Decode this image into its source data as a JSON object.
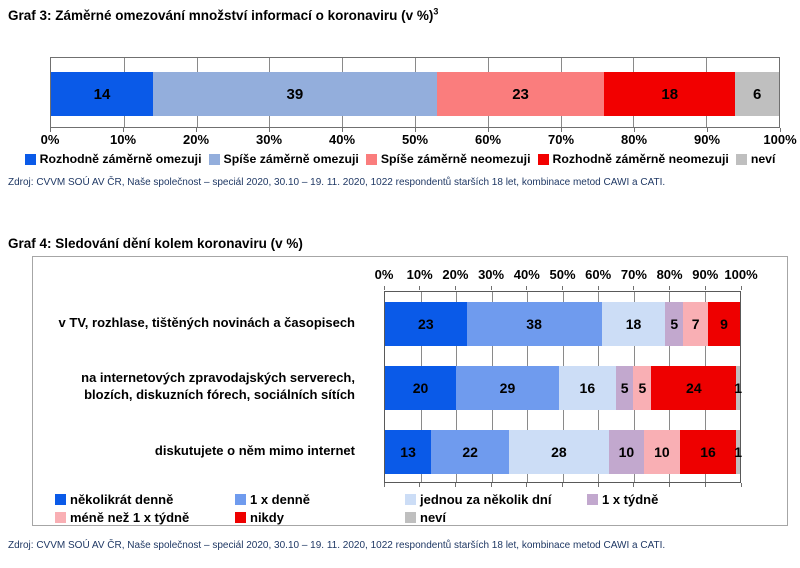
{
  "styles": {
    "source_text_color": "#1F3864",
    "gridline_color": "#8a8a8a",
    "plot_border_color": "#707070"
  },
  "chart_data": [
    {
      "type": "bar",
      "subtype": "horizontal-stacked",
      "title": "Graf 3: Záměrné omezování množství informací o koronaviru (v %)",
      "title_superscript": "3",
      "xlim": [
        0,
        100
      ],
      "grid": true,
      "axis_position": "bottom",
      "legend_position": "bottom",
      "axis_ticks": [
        "0%",
        "10%",
        "20%",
        "30%",
        "40%",
        "50%",
        "60%",
        "70%",
        "80%",
        "90%",
        "100%"
      ],
      "categories": [
        ""
      ],
      "series": [
        {
          "name": "Rozhodně záměrně omezuji",
          "color": "#0A5AE8",
          "values": [
            14
          ]
        },
        {
          "name": "Spíše záměrně omezuji",
          "color": "#93AEDC",
          "values": [
            39
          ]
        },
        {
          "name": "Spíše záměrně neomezuji",
          "color": "#FA7D7D",
          "values": [
            23
          ]
        },
        {
          "name": "Rozhodně záměrně neomezuji",
          "color": "#F20000",
          "values": [
            18
          ]
        },
        {
          "name": "neví",
          "color": "#BFBFBF",
          "values": [
            6
          ]
        }
      ],
      "source": "Zdroj: CVVM SOÚ AV ČR, Naše společnost – speciál 2020, 30.10 – 19. 11. 2020, 1022 respondentů starších 18 let, kombinace metod CAWI a CATI."
    },
    {
      "type": "bar",
      "subtype": "horizontal-stacked",
      "title": "Graf 4: Sledování dění kolem koronaviru (v %)",
      "xlim": [
        0,
        100
      ],
      "grid": true,
      "axis_position": "top",
      "legend_position": "bottom",
      "axis_ticks": [
        "0%",
        "10%",
        "20%",
        "30%",
        "40%",
        "50%",
        "60%",
        "70%",
        "80%",
        "90%",
        "100%"
      ],
      "categories": [
        "v TV, rozhlase, tištěných novinách a časopisech",
        "na internetových zpravodajských serverech, blozích, diskuzních fórech, sociálních sítích",
        "diskutujete o něm mimo internet"
      ],
      "series": [
        {
          "name": "několikrát denně",
          "color": "#0A5AE8",
          "values": [
            23,
            20,
            13
          ]
        },
        {
          "name": "1 x denně",
          "color": "#6F9BEE",
          "values": [
            38,
            29,
            22
          ]
        },
        {
          "name": "jednou za několik dní",
          "color": "#CCDDF6",
          "values": [
            18,
            16,
            28
          ]
        },
        {
          "name": "1 x týdně",
          "color": "#C2A8CE",
          "values": [
            5,
            5,
            10
          ]
        },
        {
          "name": "méně než 1 x týdně",
          "color": "#F9AFB4",
          "values": [
            7,
            5,
            10
          ]
        },
        {
          "name": "nikdy",
          "color": "#EE0000",
          "values": [
            9,
            24,
            16
          ]
        },
        {
          "name": "neví",
          "color": "#BFBFBF",
          "values": [
            0,
            1,
            1
          ]
        }
      ],
      "source": "Zdroj: CVVM SOÚ AV ČR, Naše společnost – speciál 2020, 30.10 – 19. 11. 2020, 1022 respondentů starších 18 let, kombinace metod CAWI a CATI."
    }
  ]
}
